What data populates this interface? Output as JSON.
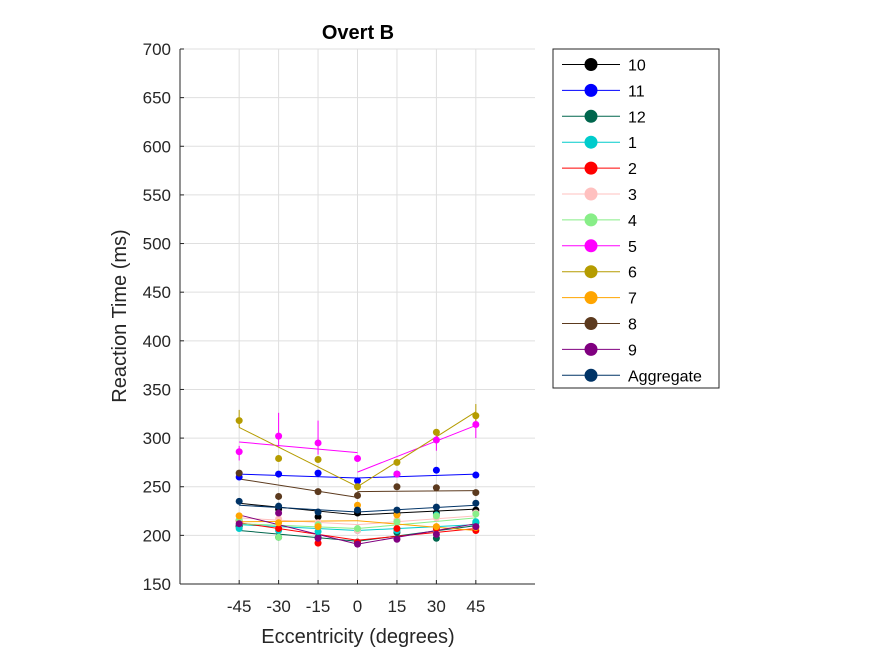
{
  "chart_data": {
    "type": "line",
    "title": "Overt B",
    "xlabel": "Eccentricity (degrees)",
    "ylabel": "Reaction Time (ms)",
    "x": [
      -45,
      -30,
      -15,
      0,
      15,
      30,
      45
    ],
    "x_ticks": [
      "-45",
      "-30",
      "-15",
      "0",
      "15",
      "30",
      "45"
    ],
    "xlim": [
      -67.5,
      67.5
    ],
    "ylim": [
      150,
      700
    ],
    "y_ticks": [
      "150",
      "200",
      "250",
      "300",
      "350",
      "400",
      "450",
      "500",
      "550",
      "600",
      "650",
      "700"
    ],
    "grid": true,
    "legend_position": "outside-right",
    "series": [
      {
        "name": "10",
        "color": "#000000",
        "points": [
          209,
          227,
          219,
          223,
          222,
          223,
          226
        ],
        "fit": [
          [
            -45,
            233
          ],
          [
            0,
            221
          ],
          [
            45,
            227
          ]
        ]
      },
      {
        "name": "11",
        "color": "#0000ff",
        "points": [
          260,
          263,
          264,
          256,
          263,
          267,
          262
        ],
        "fit": [
          [
            -45,
            263
          ],
          [
            0,
            259
          ],
          [
            45,
            263
          ]
        ]
      },
      {
        "name": "12",
        "color": "#00664d",
        "points": [
          210,
          198,
          198,
          193,
          203,
          197,
          213
        ],
        "fit": [
          [
            -45,
            205
          ],
          [
            0,
            194
          ],
          [
            45,
            210
          ]
        ]
      },
      {
        "name": "1",
        "color": "#00cccc",
        "points": [
          207,
          205,
          204,
          205,
          205,
          221,
          214
        ],
        "fit": [
          [
            -45,
            211
          ],
          [
            0,
            205
          ],
          [
            45,
            211
          ]
        ]
      },
      {
        "name": "2",
        "color": "#ff0000",
        "points": [
          215,
          207,
          192,
          193,
          207,
          207,
          205
        ],
        "fit": [
          [
            -45,
            213
          ],
          [
            0,
            195
          ],
          [
            45,
            207
          ]
        ]
      },
      {
        "name": "3",
        "color": "#ffc0bf",
        "points": [
          220,
          217,
          213,
          205,
          216,
          218,
          223
        ],
        "fit": [
          [
            -45,
            218
          ],
          [
            0,
            211
          ],
          [
            45,
            220
          ]
        ]
      },
      {
        "name": "4",
        "color": "#88ee88",
        "points": [
          216,
          198,
          211,
          207,
          214,
          220,
          222
        ],
        "fit": [
          [
            -45,
            212
          ],
          [
            0,
            207
          ],
          [
            45,
            218
          ]
        ]
      },
      {
        "name": "5",
        "color": "#ff00ff",
        "points": [
          286,
          302,
          295,
          279,
          263,
          298,
          314
        ],
        "fit": [
          [
            -45,
            296
          ],
          [
            0,
            285
          ],
          [
            0,
            265
          ],
          [
            45,
            313
          ]
        ]
      },
      {
        "name": "6",
        "color": "#b59c00",
        "points": [
          318,
          279,
          278,
          250,
          275,
          306,
          323
        ],
        "fit": [
          [
            -45,
            311
          ],
          [
            0,
            250
          ],
          [
            45,
            327
          ]
        ]
      },
      {
        "name": "7",
        "color": "#ffa500",
        "points": [
          220,
          213,
          209,
          231,
          221,
          209,
          208
        ],
        "fit": [
          [
            -45,
            214
          ],
          [
            0,
            215
          ],
          [
            45,
            205
          ]
        ]
      },
      {
        "name": "8",
        "color": "#5c3a1e",
        "points": [
          264,
          240,
          245,
          241,
          250,
          249,
          244
        ],
        "fit": [
          [
            -45,
            258
          ],
          [
            0,
            239
          ],
          [
            0,
            245
          ],
          [
            45,
            246
          ]
        ]
      },
      {
        "name": "9",
        "color": "#800080",
        "points": [
          212,
          223,
          197,
          191,
          196,
          201,
          209
        ],
        "fit": [
          [
            -45,
            221
          ],
          [
            0,
            191
          ],
          [
            45,
            212
          ]
        ]
      },
      {
        "name": "Aggregate",
        "color": "#003366",
        "points": [
          235,
          230,
          224,
          226,
          226,
          229,
          233
        ],
        "fit": [
          [
            -45,
            231
          ],
          [
            0,
            224
          ],
          [
            45,
            231
          ]
        ]
      }
    ],
    "error_bars": [
      {
        "series": "6",
        "x": -45,
        "low": 311,
        "high": 329
      },
      {
        "series": "5",
        "x": -30,
        "low": 291,
        "high": 326
      },
      {
        "series": "5",
        "x": -15,
        "low": 283,
        "high": 318
      },
      {
        "series": "5",
        "x": 30,
        "low": 287,
        "high": 307
      },
      {
        "series": "5",
        "x": 45,
        "low": 300,
        "high": 324
      },
      {
        "series": "6",
        "x": 45,
        "low": 316,
        "high": 335
      },
      {
        "series": "5",
        "x": -45,
        "low": 277,
        "high": 292
      }
    ]
  }
}
